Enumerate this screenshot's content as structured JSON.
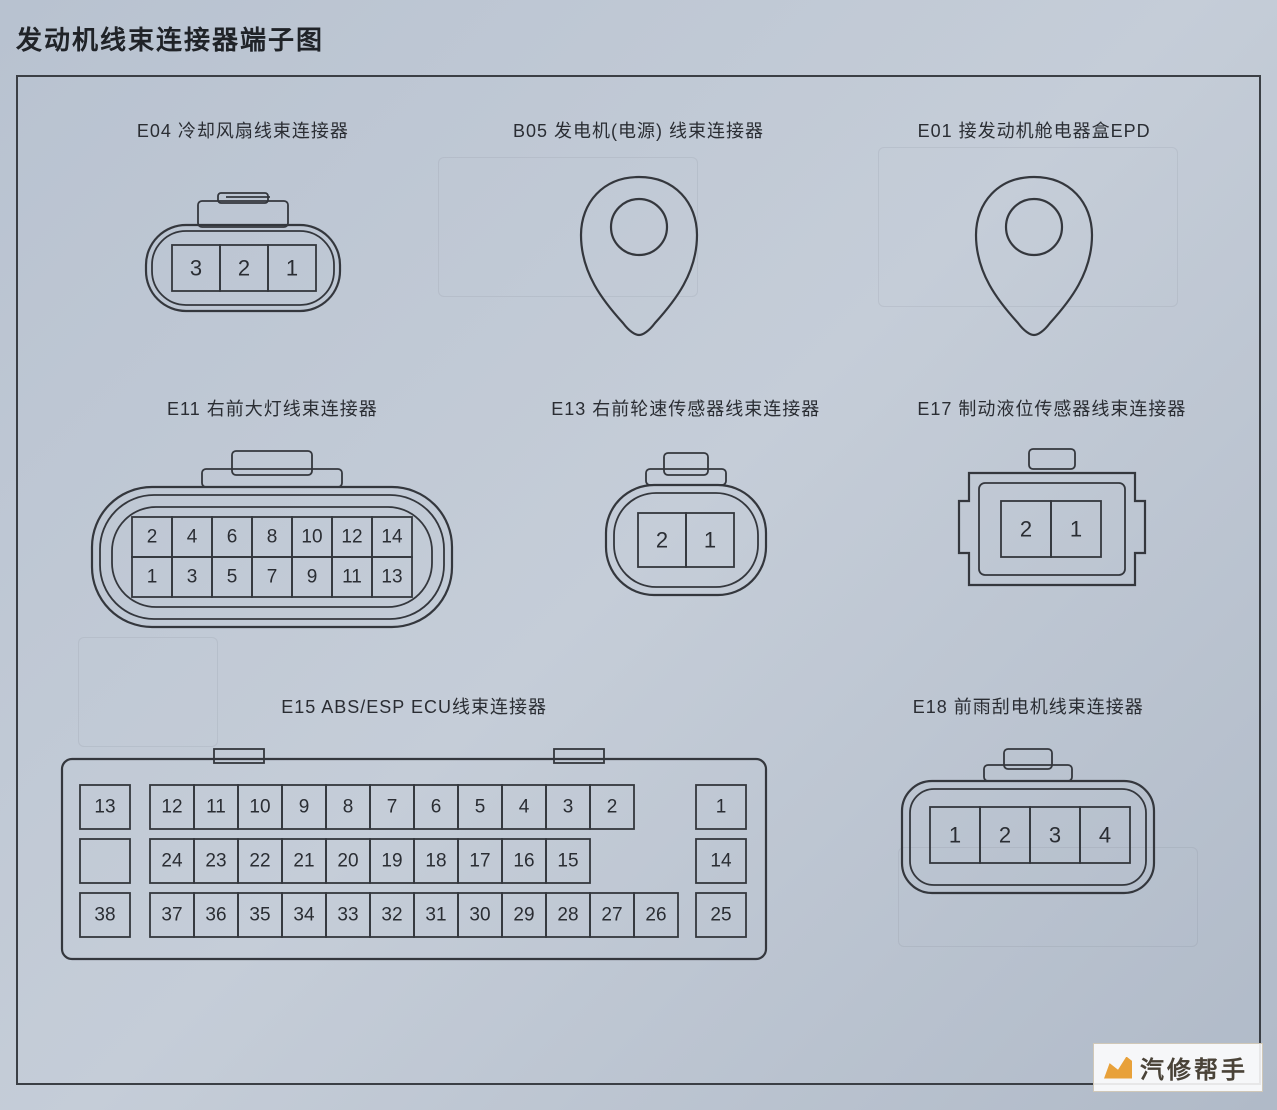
{
  "page_title": "发动机线束连接器端子图",
  "stroke_color": "#34373d",
  "bg_gradient_from": "#b8c2d0",
  "bg_gradient_to": "#b0bac8",
  "text_color": "#2a2d33",
  "watermark_text": "汽修帮手",
  "watermark_accent": "#e8a13a",
  "connectors": {
    "E04": {
      "label": "E04 冷却风扇线束连接器",
      "type": "rect-3pin-with-clip",
      "pins": [
        "3",
        "2",
        "1"
      ],
      "pin_fontsize": 22
    },
    "B05": {
      "label": "B05 发电机(电源) 线束连接器",
      "type": "teardrop-ring",
      "pins": []
    },
    "E01": {
      "label": "E01 接发动机舱电器盒EPD",
      "type": "teardrop-ring",
      "pins": []
    },
    "E11": {
      "label": "E11 右前大灯线束连接器",
      "type": "rounded-14pin-clip",
      "rows": [
        [
          "2",
          "4",
          "6",
          "8",
          "10",
          "12",
          "14"
        ],
        [
          "1",
          "3",
          "5",
          "7",
          "9",
          "11",
          "13"
        ]
      ],
      "pin_fontsize": 19
    },
    "E13": {
      "label": "E13 右前轮速传感器线束连接器",
      "type": "rounded-2pin-clip",
      "pins": [
        "2",
        "1"
      ],
      "pin_fontsize": 22
    },
    "E17": {
      "label": "E17 制动液位传感器线束连接器",
      "type": "square-2pin-notched",
      "pins": [
        "2",
        "1"
      ],
      "pin_fontsize": 22
    },
    "E15": {
      "label": "E15 ABS/ESP ECU线束连接器",
      "type": "rect-38pin",
      "left_sep": [
        "13",
        "",
        "38"
      ],
      "right_sep": [
        "1",
        "14",
        "25"
      ],
      "rows": [
        [
          "12",
          "11",
          "10",
          "9",
          "8",
          "7",
          "6",
          "5",
          "4",
          "3",
          "2"
        ],
        [
          "24",
          "23",
          "22",
          "21",
          "20",
          "19",
          "18",
          "17",
          "16",
          "15"
        ],
        [
          "37",
          "36",
          "35",
          "34",
          "33",
          "32",
          "31",
          "30",
          "29",
          "28",
          "27",
          "26"
        ]
      ],
      "pin_fontsize": 19
    },
    "E18": {
      "label": "E18 前雨刮电机线束连接器",
      "type": "rounded-4pin-clip",
      "pins": [
        "1",
        "2",
        "3",
        "4"
      ],
      "pin_fontsize": 22
    }
  }
}
